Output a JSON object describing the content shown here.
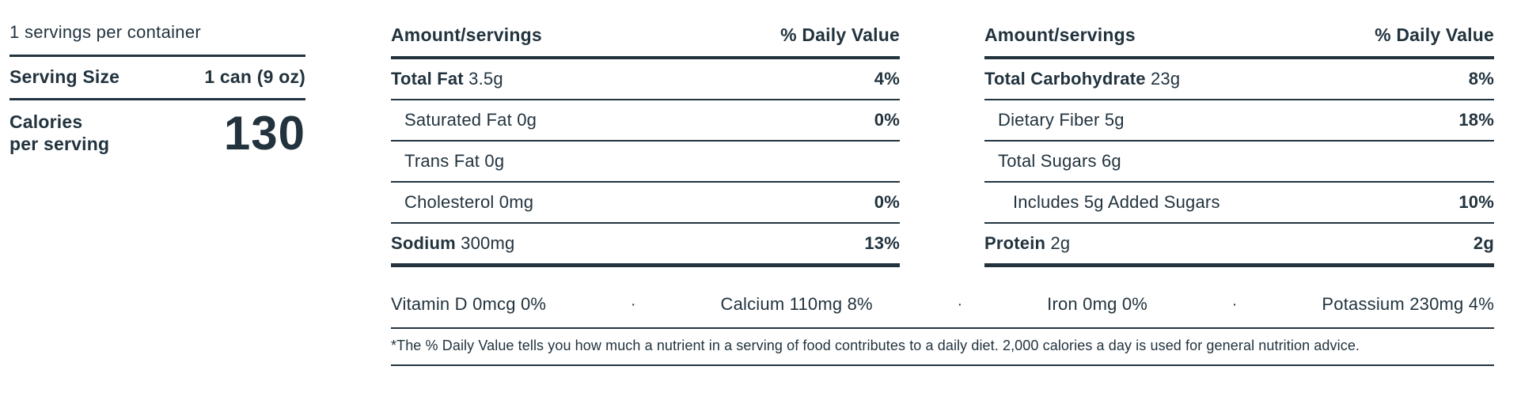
{
  "accent_color": "#22333e",
  "left": {
    "servings_per_container": "1 servings per container",
    "serving_size_label": "Serving Size",
    "serving_size_value": "1 can (9 oz)",
    "calories_label_line1": "Calories",
    "calories_label_line2": "per serving",
    "calories_value": "130"
  },
  "columns": [
    {
      "header": {
        "amount": "Amount/servings",
        "dv": "% Daily Value"
      },
      "rows": [
        {
          "bold": "Total Fat",
          "rest": " 3.5g",
          "dv": "4%"
        },
        {
          "bold": "",
          "rest": "Saturated Fat 0g",
          "dv": "0%"
        },
        {
          "bold": "",
          "rest": "Trans Fat 0g",
          "dv": ""
        },
        {
          "bold": "",
          "rest": "Cholesterol 0mg",
          "dv": "0%"
        },
        {
          "bold": "Sodium",
          "rest": " 300mg",
          "dv": "13%"
        }
      ]
    },
    {
      "header": {
        "amount": "Amount/servings",
        "dv": "% Daily Value"
      },
      "rows": [
        {
          "bold": "Total Carbohydrate",
          "rest": " 23g",
          "dv": "8%"
        },
        {
          "bold": "",
          "rest": "Dietary Fiber 5g",
          "dv": "18%"
        },
        {
          "bold": "",
          "rest": "Total Sugars 6g",
          "dv": ""
        },
        {
          "bold": "",
          "rest": "Includes 5g Added Sugars",
          "dv": "10%"
        },
        {
          "bold": "Protein",
          "rest": " 2g",
          "dv": "2g"
        }
      ]
    }
  ],
  "micronutrients": {
    "separator": "·",
    "items": [
      "Vitamin D 0mcg 0%",
      "Calcium 110mg 8%",
      "Iron 0mg 0%",
      "Potassium 230mg 4%"
    ]
  },
  "footnote": "*The % Daily Value tells you how much a nutrient in a serving of food contributes to a daily diet. 2,000 calories a day is used for general nutrition advice."
}
